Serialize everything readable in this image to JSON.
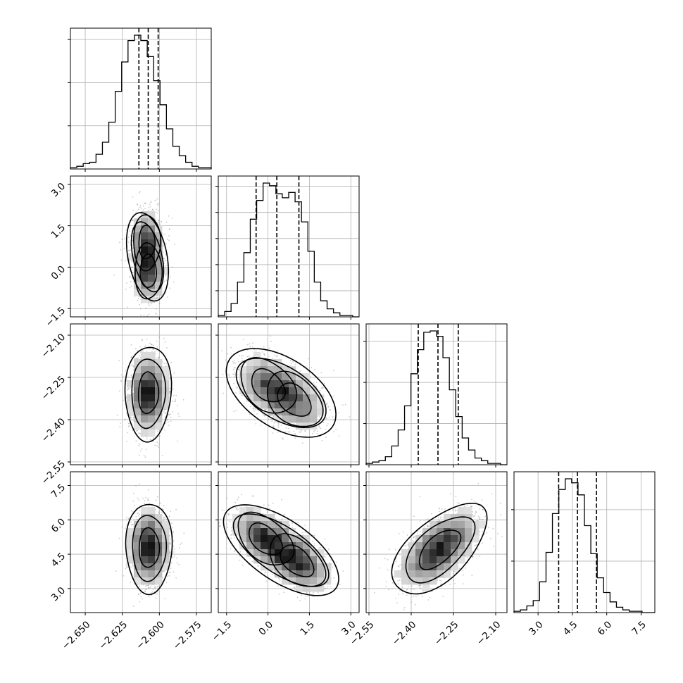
{
  "chart_data": {
    "type": "corner",
    "grid": true,
    "parameters": [
      {
        "range": [
          -2.66,
          -2.565
        ],
        "ticks": [
          -2.65,
          -2.625,
          -2.6,
          -2.575
        ],
        "tick_labels": [
          "−2.650",
          "−2.625",
          "−2.600",
          "−2.575"
        ],
        "median": -2.6075,
        "q16": -2.6138,
        "q84": -2.6008,
        "sigma": 0.0065
      },
      {
        "range": [
          -1.8,
          3.3
        ],
        "ticks": [
          -1.5,
          0.0,
          1.5,
          3.0
        ],
        "tick_labels": [
          "−1.5",
          "0.0",
          "1.5",
          "3.0"
        ],
        "median": 0.32,
        "q16": -0.43,
        "q84": 1.12,
        "sigma": 0.72
      },
      {
        "range": [
          -2.56,
          -2.06
        ],
        "ticks": [
          -2.55,
          -2.4,
          -2.25,
          -2.1
        ],
        "tick_labels": [
          "−2.55",
          "−2.40",
          "−2.25",
          "−2.10"
        ],
        "median": -2.305,
        "q16": -2.375,
        "q84": -2.233,
        "sigma": 0.07
      },
      {
        "range": [
          1.95,
          8.1
        ],
        "ticks": [
          3.0,
          4.5,
          6.0,
          7.5
        ],
        "tick_labels": [
          "3.0",
          "4.5",
          "6.0",
          "7.5"
        ],
        "median": 4.72,
        "q16": 3.9,
        "q84": 5.55,
        "sigma": 0.82
      }
    ],
    "histograms": [
      [
        0.01,
        0.02,
        0.04,
        0.05,
        0.11,
        0.2,
        0.35,
        0.58,
        0.8,
        0.96,
        1.0,
        0.96,
        0.84,
        0.66,
        0.48,
        0.3,
        0.17,
        0.1,
        0.05,
        0.02,
        0.01,
        0.01
      ],
      [
        0.01,
        0.04,
        0.1,
        0.26,
        0.48,
        0.73,
        0.87,
        1.0,
        0.98,
        0.92,
        0.89,
        0.93,
        0.86,
        0.71,
        0.49,
        0.26,
        0.12,
        0.06,
        0.03,
        0.01,
        0.01,
        0.0
      ],
      [
        0.01,
        0.02,
        0.03,
        0.06,
        0.14,
        0.26,
        0.44,
        0.68,
        0.86,
        0.99,
        1.0,
        0.96,
        0.8,
        0.56,
        0.36,
        0.2,
        0.11,
        0.05,
        0.03,
        0.01,
        0.01,
        0.0
      ],
      [
        0.01,
        0.02,
        0.05,
        0.09,
        0.23,
        0.45,
        0.74,
        0.92,
        1.0,
        0.97,
        0.88,
        0.65,
        0.44,
        0.26,
        0.15,
        0.08,
        0.04,
        0.02,
        0.01,
        0.01,
        0.0,
        0.0
      ]
    ],
    "hist_peak_counts": [
      3100,
      1025,
      2600,
      520
    ],
    "hist_y_ticks": [
      [
        1000,
        2000,
        3000
      ],
      [
        200,
        400,
        600,
        800,
        1000
      ],
      [
        800,
        1600,
        2400
      ],
      [
        200,
        400
      ]
    ],
    "pairs": [
      {
        "x": 0,
        "y": 1,
        "centers": [
          [
            -2.6085,
            0.9
          ],
          [
            -2.6075,
            -0.15
          ]
        ],
        "rho": 0.0
      },
      {
        "x": 0,
        "y": 2,
        "centers": [
          [
            -2.6075,
            -2.305
          ]
        ],
        "rho": 0.05
      },
      {
        "x": 1,
        "y": 2,
        "centers": [
          [
            0.0,
            -2.28
          ],
          [
            0.95,
            -2.33
          ]
        ],
        "rho": -0.35
      },
      {
        "x": 0,
        "y": 3,
        "centers": [
          [
            -2.607,
            4.78
          ]
        ],
        "rho": 0.0
      },
      {
        "x": 1,
        "y": 3,
        "centers": [
          [
            -0.1,
            5.15
          ],
          [
            1.05,
            4.2
          ]
        ],
        "rho": -0.45
      },
      {
        "x": 2,
        "y": 3,
        "centers": [
          [
            -2.3,
            4.72
          ]
        ],
        "rho": 0.6
      }
    ]
  }
}
